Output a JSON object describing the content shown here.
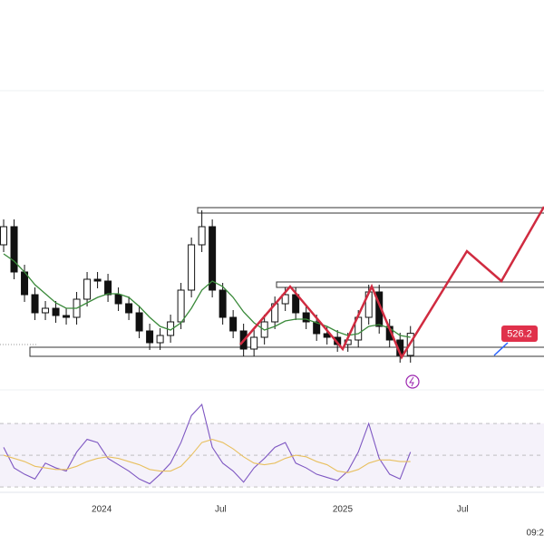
{
  "chart_data": [
    {
      "type": "candlestick",
      "xlim": [
        -0.35,
        51.8
      ],
      "ylim": [
        490,
        710
      ],
      "xticks": [
        {
          "value": 9.4,
          "label": "2024"
        },
        {
          "value": 20.8,
          "label": "Jul"
        },
        {
          "value": 32.5,
          "label": "2025"
        },
        {
          "value": 44,
          "label": "Jul"
        }
      ],
      "open": [
        575,
        585,
        560,
        547.5,
        537.5,
        540,
        536,
        535,
        545,
        556,
        555,
        547.5,
        542.5,
        537.5,
        527.5,
        521,
        525,
        532.5,
        550,
        575,
        585,
        550,
        535,
        527.5,
        517.5,
        524,
        532.5,
        542.5,
        547.5,
        537.5,
        532.5,
        526,
        524,
        520,
        522.5,
        535,
        549,
        530,
        522.5,
        514
      ],
      "high": [
        589,
        589,
        564,
        551.5,
        544,
        544,
        540,
        549,
        560,
        560,
        559,
        551.5,
        546.5,
        541.5,
        531.5,
        529,
        536.5,
        554,
        579,
        594,
        589,
        554,
        539,
        531.5,
        528,
        536.5,
        546.5,
        551.5,
        551.5,
        541.5,
        536.5,
        530,
        528,
        526.5,
        539,
        553,
        553,
        534,
        526.5,
        530.2
      ],
      "low": [
        571,
        556,
        543.5,
        533.5,
        533.5,
        532,
        531,
        531,
        541,
        551,
        543.5,
        538.5,
        533.5,
        523.5,
        517,
        517,
        521,
        528.5,
        546,
        571,
        546,
        531,
        523.5,
        513.5,
        513.5,
        520,
        528.5,
        538.5,
        533.5,
        528.5,
        522,
        520,
        516,
        516,
        518.5,
        531,
        526,
        518.5,
        510,
        510
      ],
      "close": [
        585,
        560,
        547.5,
        537.5,
        540,
        536,
        535,
        545,
        556,
        555,
        547.5,
        542.5,
        537.5,
        527.5,
        521,
        525,
        532.5,
        550,
        575,
        585,
        550,
        535,
        527.5,
        517.5,
        524,
        532.5,
        542.5,
        547.5,
        537.5,
        532.5,
        526,
        524,
        520,
        522.5,
        535,
        549,
        530,
        522.5,
        514,
        526.2
      ],
      "ma": {
        "color": "#3a8a3a",
        "values": [
          570,
          566,
          560,
          553,
          548,
          543,
          540,
          540,
          543,
          546,
          548,
          548,
          546,
          541,
          535,
          530,
          528,
          532,
          540,
          550,
          555,
          552,
          546,
          538,
          532,
          528,
          530,
          533,
          534,
          534,
          532,
          530,
          527,
          525,
          526,
          530,
          531,
          529,
          525,
          524
        ]
      },
      "time_label": "09:2"
    },
    {
      "type": "line",
      "xlim": [
        -0.35,
        51.8
      ],
      "ylim": [
        26.6,
        72.9
      ],
      "yticks": [
        30,
        50,
        70
      ],
      "series": [
        {
          "color": "#7e57c2",
          "values": [
            55,
            42,
            38,
            35,
            45,
            42,
            40,
            52,
            60,
            58,
            48,
            44,
            40,
            35,
            32,
            38,
            45,
            58,
            75,
            82,
            55,
            45,
            40,
            33,
            42,
            48,
            55,
            58,
            45,
            42,
            38,
            36,
            34,
            40,
            52,
            70,
            48,
            38,
            35,
            52
          ]
        },
        {
          "color": "#e8c060",
          "values": [
            50,
            48,
            46,
            43,
            42,
            41,
            41,
            43,
            46,
            48,
            49,
            48,
            46,
            44,
            41,
            40,
            40,
            43,
            50,
            58,
            60,
            58,
            54,
            49,
            45,
            44,
            45,
            48,
            50,
            49,
            46,
            44,
            40,
            39,
            41,
            45,
            47,
            47,
            46,
            46
          ]
        }
      ]
    }
  ]
}
